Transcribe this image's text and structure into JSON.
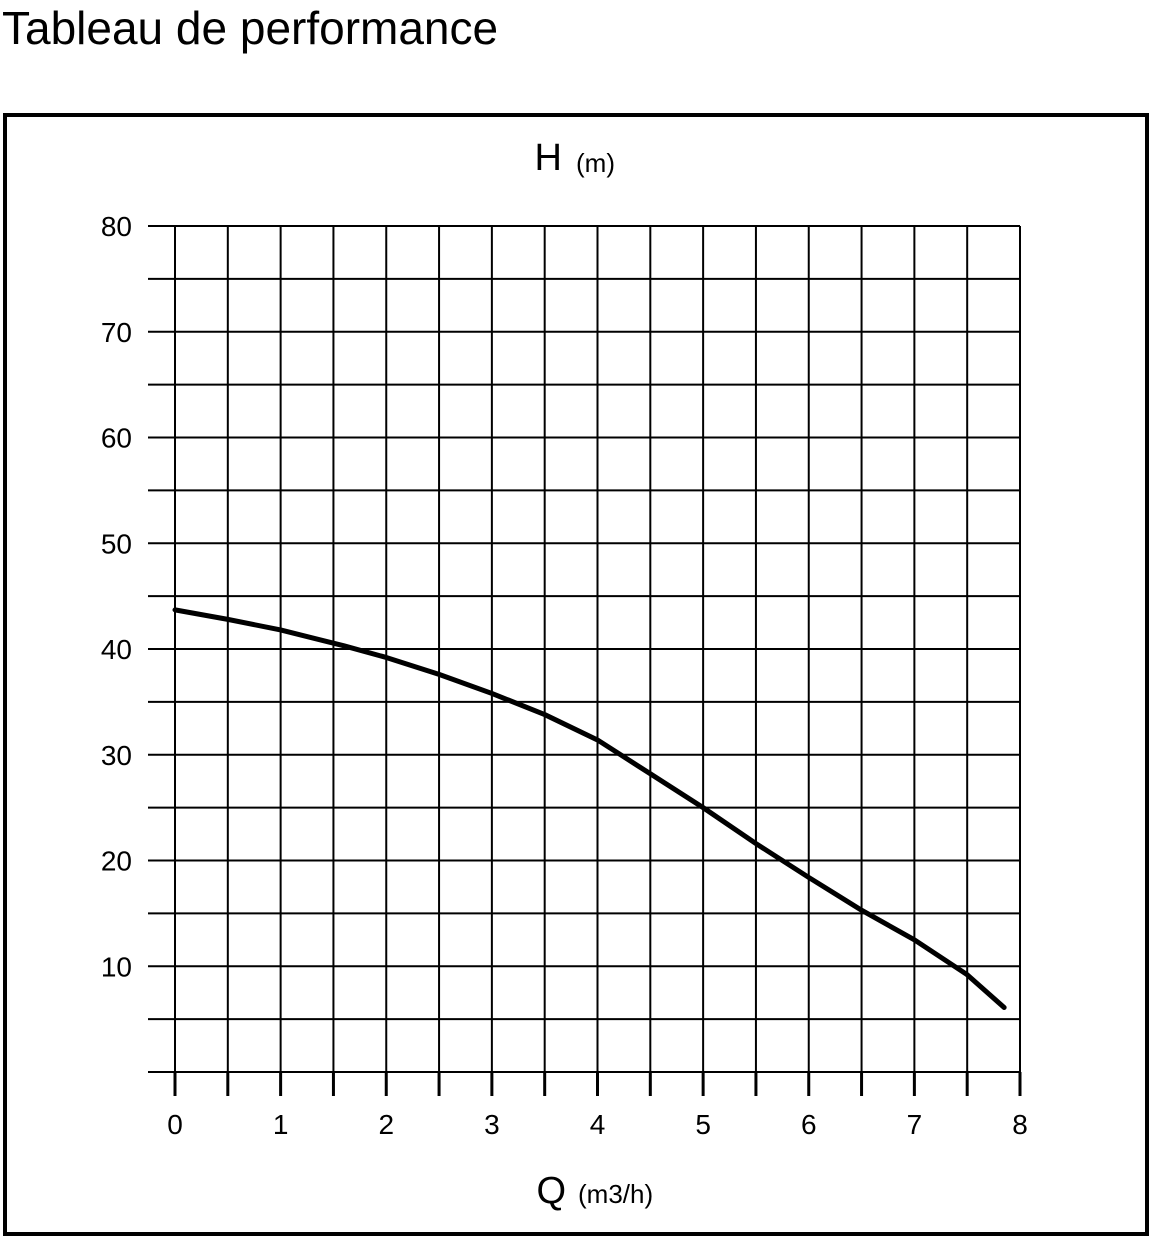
{
  "chart_data": {
    "type": "line",
    "title": "Tableau de performance",
    "ylabel": "H",
    "yunit": "(m)",
    "xlabel": "Q",
    "xunit": "(m3/h)",
    "x": [
      0,
      0.5,
      1,
      1.6,
      2,
      2.5,
      3,
      3.5,
      4,
      4.5,
      5,
      5.5,
      6,
      6.5,
      7,
      7.5,
      7.85
    ],
    "series": [
      {
        "color": "#000000",
        "values": [
          43.7,
          42.8,
          41.8,
          40.3,
          39.2,
          37.6,
          35.8,
          33.8,
          31.4,
          28.2,
          25.0,
          21.6,
          18.4,
          15.3,
          12.5,
          9.2,
          6.1
        ]
      }
    ],
    "xlim": [
      0,
      8
    ],
    "ylim": [
      0,
      80
    ],
    "xticks": [
      0,
      1,
      2,
      3,
      4,
      5,
      6,
      7,
      8
    ],
    "yticks": [
      10,
      20,
      30,
      40,
      50,
      60,
      70,
      80
    ],
    "xminor": [
      0.5,
      1.5,
      2.5,
      3.5,
      4.5,
      5.5,
      6.5,
      7.5
    ],
    "yminor": [
      0,
      5,
      15,
      25,
      35,
      45,
      55,
      65,
      75
    ],
    "grid": true
  }
}
